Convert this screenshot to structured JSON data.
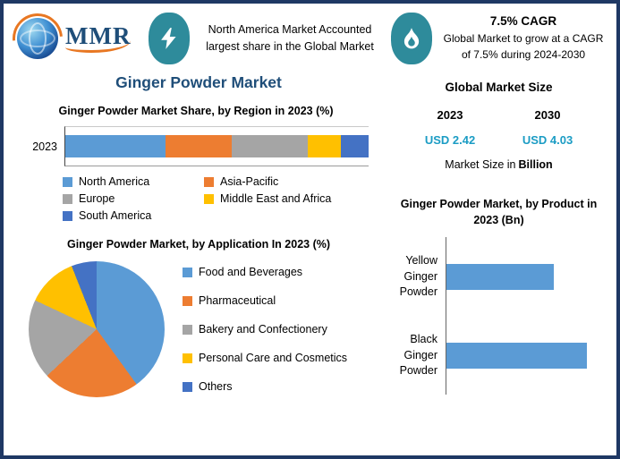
{
  "colors": {
    "border": "#1F3864",
    "accent": "#2E8B9B",
    "title_blue": "#1F4E79",
    "value_teal": "#1B9CC4"
  },
  "logo": {
    "text": "MMR"
  },
  "header": {
    "callout1": "North America Market Accounted largest share in the Global Market",
    "callout2_title": "7.5% CAGR",
    "callout2_text": "Global Market to grow at a CAGR of 7.5% during 2024-2030"
  },
  "page_title": "Ginger Powder Market",
  "market_size": {
    "title": "Global Market Size",
    "years": [
      "2023",
      "2030"
    ],
    "values": [
      "USD 2.42",
      "USD 4.03"
    ],
    "note": "Market Size in",
    "note_bold": "Billion"
  },
  "chart_data": [
    {
      "type": "bar",
      "orientation": "horizontal-stacked",
      "title": "Ginger Powder Market Share, by Region in 2023 (%)",
      "categories": [
        "2023"
      ],
      "series": [
        {
          "name": "North America",
          "values": [
            33
          ],
          "color": "#5B9BD5"
        },
        {
          "name": "Asia-Pacific",
          "values": [
            22
          ],
          "color": "#ED7D31"
        },
        {
          "name": "Europe",
          "values": [
            25
          ],
          "color": "#A5A5A5"
        },
        {
          "name": "Middle East and Africa",
          "values": [
            11
          ],
          "color": "#FFC000"
        },
        {
          "name": "South America",
          "values": [
            9
          ],
          "color": "#4472C4"
        }
      ],
      "xlim": [
        0,
        100
      ],
      "legend_position": "bottom"
    },
    {
      "type": "pie",
      "title": "Ginger Powder Market, by Application In 2023 (%)",
      "labels": [
        "Food and Beverages",
        "Pharmaceutical",
        "Bakery and Confectionery",
        "Personal Care and Cosmetics",
        "Others"
      ],
      "values": [
        40,
        23,
        19,
        12,
        6
      ],
      "colors": [
        "#5B9BD5",
        "#ED7D31",
        "#A5A5A5",
        "#FFC000",
        "#4472C4"
      ],
      "legend_position": "right"
    },
    {
      "type": "bar",
      "orientation": "horizontal",
      "title": "Ginger Powder Market, by Product in 2023 (Bn)",
      "categories": [
        "Yellow Ginger Powder",
        "Black Ginger Powder"
      ],
      "values": [
        1.05,
        1.37
      ],
      "color": "#5B9BD5",
      "xlim": [
        0,
        1.5
      ]
    }
  ]
}
